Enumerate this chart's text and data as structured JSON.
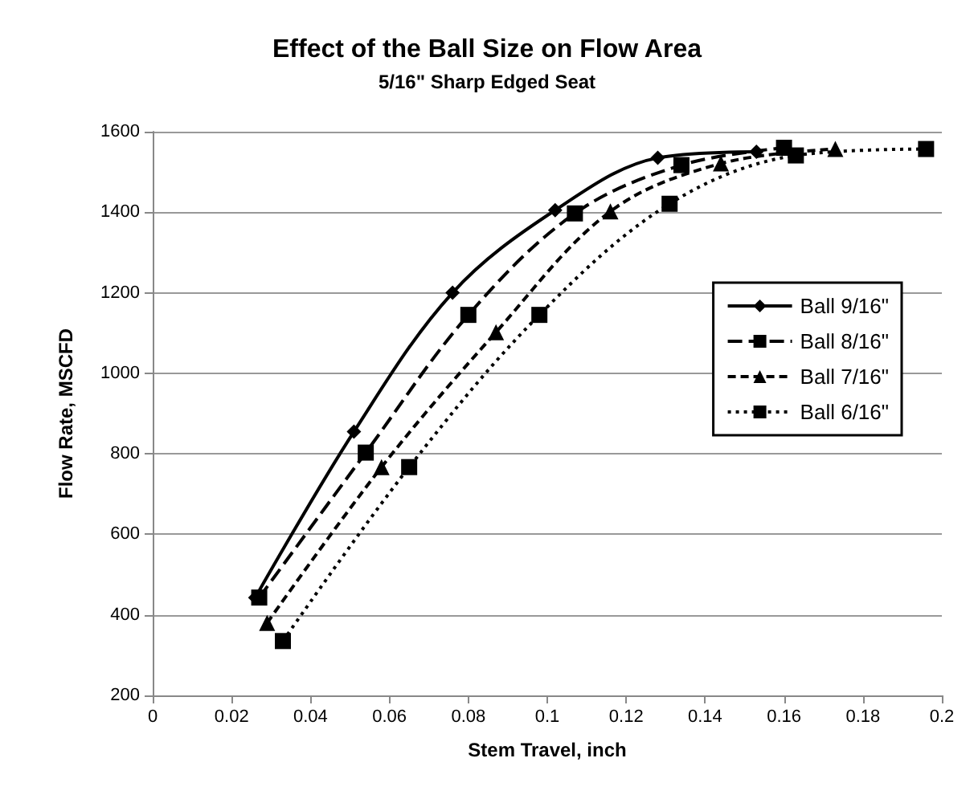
{
  "chart_data": {
    "type": "line",
    "title": "Effect of the Ball Size on Flow Area",
    "subtitle": "5/16\" Sharp Edged Seat",
    "xlabel": "Stem Travel, inch",
    "ylabel": "Flow Rate, MSCFD",
    "xlim": [
      0,
      0.2
    ],
    "xticks": [
      0,
      0.02,
      0.04,
      0.06,
      0.08,
      0.1,
      0.12,
      0.14,
      0.16,
      0.18,
      0.2
    ],
    "ylim": [
      200,
      1600
    ],
    "yticks": [
      200,
      400,
      600,
      800,
      1000,
      1200,
      1400,
      1600
    ],
    "grid": "y",
    "legend": "right",
    "series": [
      {
        "name": "Ball 9/16\"",
        "color": "#000000",
        "marker": "diamond",
        "line_style": "solid",
        "x": [
          0.026,
          0.051,
          0.076,
          0.102,
          0.128,
          0.153
        ],
        "values": [
          443,
          855,
          1200,
          1405,
          1535,
          1550
        ]
      },
      {
        "name": "Ball 8/16\"",
        "color": "#000000",
        "marker": "square",
        "line_style": "dashed",
        "x": [
          0.027,
          0.054,
          0.08,
          0.107,
          0.134,
          0.16
        ],
        "values": [
          443,
          803,
          1145,
          1397,
          1517,
          1560
        ]
      },
      {
        "name": "Ball 7/16\"",
        "color": "#000000",
        "marker": "triangle",
        "line_style": "dashed",
        "x": [
          0.029,
          0.058,
          0.087,
          0.116,
          0.144,
          0.173
        ],
        "values": [
          380,
          767,
          1102,
          1402,
          1521,
          1557
        ]
      },
      {
        "name": "Ball 6/16\"",
        "color": "#000000",
        "marker": "square",
        "line_style": "dotted",
        "x": [
          0.033,
          0.065,
          0.098,
          0.131,
          0.163,
          0.196
        ],
        "values": [
          335,
          767,
          1145,
          1421,
          1541,
          1557
        ]
      }
    ]
  }
}
